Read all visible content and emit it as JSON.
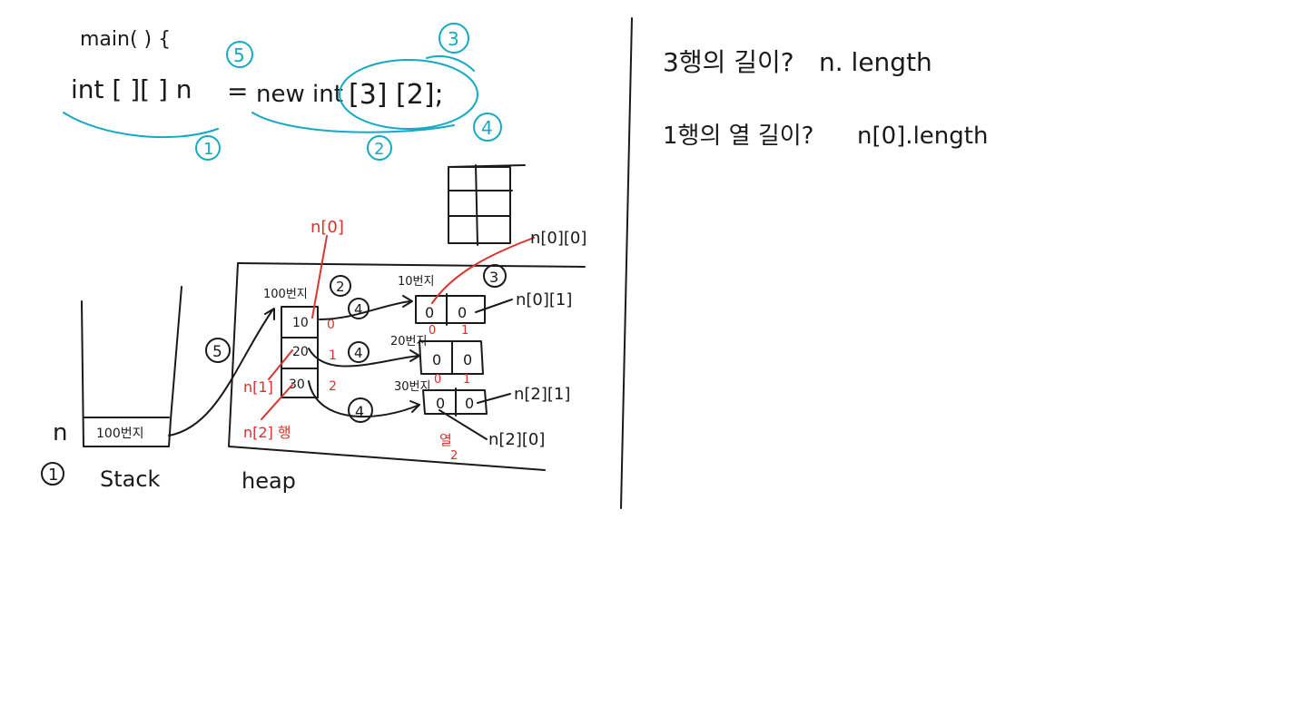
{
  "code": {
    "line1": "main( ) {",
    "decl": "int [ ][ ] n",
    "eq": "=",
    "new_kw": "new int",
    "dims": "[3] [2];"
  },
  "markers": {
    "m1": "1",
    "m2": "2",
    "m3": "3",
    "m4": "4",
    "m5": "5"
  },
  "notes": {
    "q_rows": "3행의 길이?",
    "a_rows": "n. length",
    "q_cols": "1행의 열 길이?",
    "a_cols": "n[0].length"
  },
  "memory": {
    "stack_var": "n",
    "stack_val": "100번지",
    "stack_label": "Stack",
    "heap_label": "heap",
    "circle_one": "1",
    "addr_100": "100번지",
    "addr_10": "10번지",
    "addr_20": "20번지",
    "addr_30": "30번지",
    "row_refs": [
      "10",
      "20",
      "30"
    ],
    "row_index": [
      "0",
      "1",
      "2"
    ],
    "cell_values": [
      "0",
      "0",
      "0",
      "0",
      "0",
      "0"
    ],
    "col_index": [
      "0",
      "1",
      "0",
      "1"
    ],
    "lbl_n0": "n[0]",
    "lbl_n1": "n[1]",
    "lbl_n2_row": "n[2] 행",
    "lbl_n00": "n[0][0]",
    "lbl_n01": "n[0][1]",
    "lbl_n21": "n[2][1]",
    "lbl_n20": "n[2][0]",
    "lbl_col": "열",
    "lbl_col_num": "2",
    "step2": "2",
    "step3": "3",
    "step4": "4",
    "step5": "5"
  },
  "colors": {
    "ink": "#1a1a1a",
    "red": "#d9332b",
    "teal": "#14a9c4"
  }
}
